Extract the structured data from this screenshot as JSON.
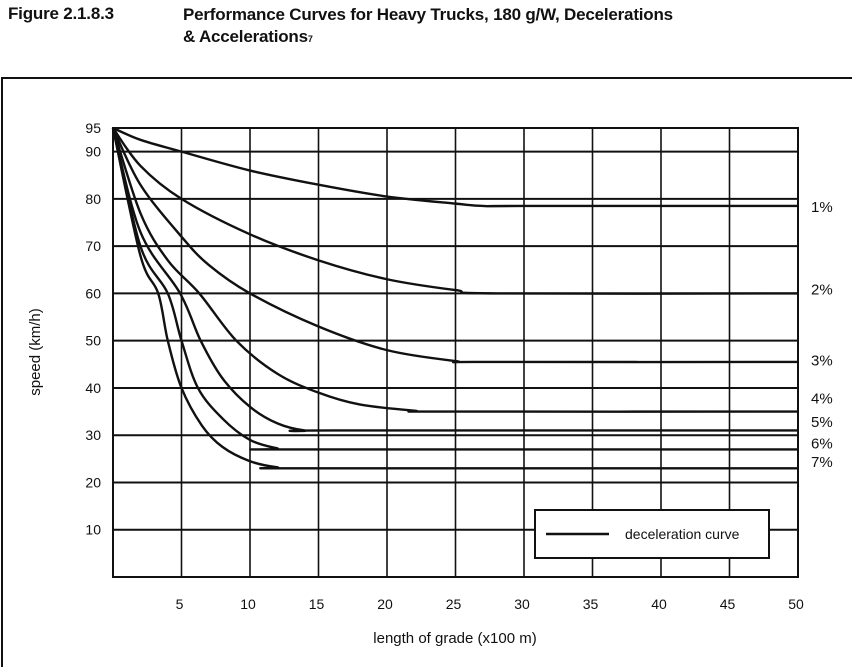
{
  "figure": {
    "number": "Figure 2.1.8.3",
    "title_line1": "Performance Curves for Heavy Trucks, 180 g/W, Decelerations",
    "title_line2": "& Accelerations",
    "footnote_mark": "7"
  },
  "chart_data": {
    "type": "line",
    "title": "Performance Curves for Heavy Trucks, 180 g/W, Decelerations & Accelerations",
    "xlabel": "length of grade (x100 m)",
    "ylabel": "speed (km/h)",
    "xlim": [
      0,
      50
    ],
    "ylim": [
      0,
      95
    ],
    "x_ticks": [
      5,
      10,
      15,
      20,
      25,
      30,
      35,
      40,
      45,
      50
    ],
    "y_ticks": [
      10,
      20,
      30,
      40,
      50,
      60,
      70,
      80,
      90,
      95
    ],
    "grid": true,
    "legend": {
      "position": "lower right",
      "entries": [
        "deceleration curve"
      ]
    },
    "series": [
      {
        "name": "1%",
        "label_y": 78.5,
        "points": [
          [
            0,
            95
          ],
          [
            2,
            92.5
          ],
          [
            5,
            90
          ],
          [
            10,
            86
          ],
          [
            15,
            83
          ],
          [
            20,
            80.5
          ],
          [
            25,
            79
          ],
          [
            27,
            78.5
          ],
          [
            30,
            78.5
          ],
          [
            50,
            78.5
          ]
        ]
      },
      {
        "name": "2%",
        "label_y": 61,
        "points": [
          [
            0,
            95
          ],
          [
            2,
            87
          ],
          [
            5,
            80
          ],
          [
            10,
            72.5
          ],
          [
            15,
            67
          ],
          [
            20,
            63
          ],
          [
            25,
            60.7
          ],
          [
            28,
            60
          ],
          [
            50,
            60
          ]
        ]
      },
      {
        "name": "3%",
        "label_y": 46,
        "points": [
          [
            0,
            95
          ],
          [
            2,
            83
          ],
          [
            5,
            72
          ],
          [
            7,
            66
          ],
          [
            10,
            60
          ],
          [
            15,
            53
          ],
          [
            20,
            48
          ],
          [
            25,
            45.7
          ],
          [
            27,
            45.5
          ],
          [
            50,
            45.5
          ]
        ]
      },
      {
        "name": "4%",
        "label_y": 38,
        "points": [
          [
            0,
            95
          ],
          [
            2,
            77
          ],
          [
            4,
            67
          ],
          [
            6.3,
            60
          ],
          [
            9,
            50
          ],
          [
            12,
            43
          ],
          [
            15,
            39
          ],
          [
            18,
            36.5
          ],
          [
            22,
            35.2
          ],
          [
            24,
            35
          ],
          [
            50,
            35
          ]
        ]
      },
      {
        "name": "5%",
        "label_y": 33,
        "points": [
          [
            0,
            95
          ],
          [
            2,
            73
          ],
          [
            4.9,
            60
          ],
          [
            6.4,
            50
          ],
          [
            8,
            42
          ],
          [
            10,
            36
          ],
          [
            12,
            32.5
          ],
          [
            14,
            31
          ],
          [
            16,
            31
          ],
          [
            50,
            31
          ]
        ]
      },
      {
        "name": "6%",
        "label_y": 28.5,
        "points": [
          [
            0,
            95
          ],
          [
            2,
            70
          ],
          [
            4,
            60
          ],
          [
            5,
            50
          ],
          [
            6.2,
            40
          ],
          [
            8,
            33.5
          ],
          [
            10,
            29
          ],
          [
            12,
            27.2
          ],
          [
            13,
            27
          ],
          [
            50,
            27
          ]
        ]
      },
      {
        "name": "7%",
        "label_y": 24.5,
        "points": [
          [
            0,
            95
          ],
          [
            2,
            68
          ],
          [
            3.3,
            60
          ],
          [
            4,
            50
          ],
          [
            5,
            40
          ],
          [
            6.5,
            32
          ],
          [
            8,
            27.5
          ],
          [
            10,
            24.5
          ],
          [
            12,
            23.2
          ],
          [
            14,
            23
          ],
          [
            50,
            23
          ]
        ]
      }
    ]
  },
  "axes": {
    "x_label": "length of grade (x100 m)",
    "y_label": "speed (km/h)",
    "legend_label": "deceleration curve"
  }
}
